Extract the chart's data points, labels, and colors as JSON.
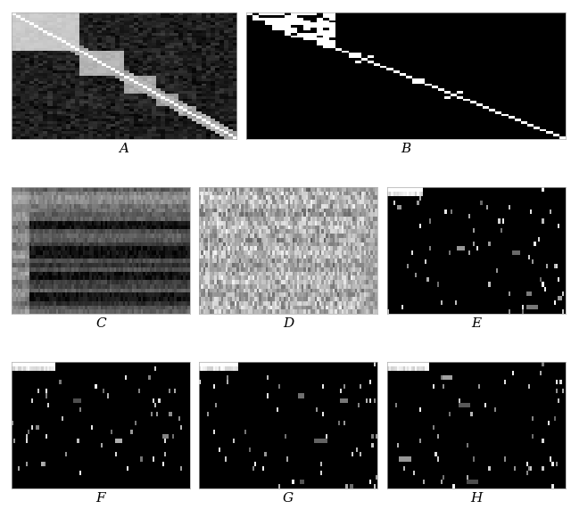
{
  "panels": [
    "A",
    "B",
    "C",
    "D",
    "E",
    "F",
    "G",
    "H"
  ],
  "background_color": "#ffffff",
  "label_fontsize": 11,
  "label_family": "serif"
}
